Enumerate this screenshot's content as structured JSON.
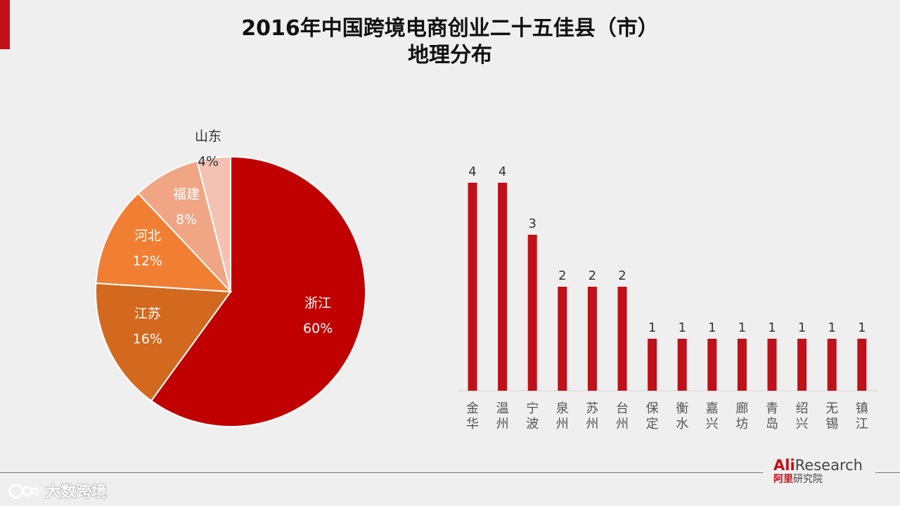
{
  "title_line1": "2016年中国跨境电商创业二十五佳县（市）",
  "title_line2": "地理分布",
  "colors": {
    "accent": "#c0101a",
    "bar": "#c0101a",
    "pie": [
      "#c00000",
      "#d2691e",
      "#f07f34",
      "#f0a585",
      "#f4c2b3"
    ]
  },
  "chart_data": [
    {
      "type": "pie",
      "slices": [
        {
          "label": "浙江",
          "percent_label": "60%",
          "value": 60
        },
        {
          "label": "江苏",
          "percent_label": "16%",
          "value": 16
        },
        {
          "label": "河北",
          "percent_label": "12%",
          "value": 12
        },
        {
          "label": "福建",
          "percent_label": "8%",
          "value": 8
        },
        {
          "label": "山东",
          "percent_label": "4%",
          "value": 4
        }
      ]
    },
    {
      "type": "bar",
      "categories": [
        "金华",
        "温州",
        "宁波",
        "泉州",
        "苏州",
        "台州",
        "保定",
        "衡水",
        "嘉兴",
        "廊坊",
        "青岛",
        "绍兴",
        "无锡",
        "镇江"
      ],
      "values": [
        4,
        4,
        3,
        2,
        2,
        2,
        1,
        1,
        1,
        1,
        1,
        1,
        1,
        1
      ],
      "ylim": [
        0,
        4
      ]
    }
  ],
  "brand": {
    "ali": "Ali",
    "research": "Research",
    "cn_ali": "阿里",
    "cn_rest": "研究院"
  },
  "watermark": {
    "icon": "dashuju-logo-icon",
    "text": "大数跨境"
  }
}
